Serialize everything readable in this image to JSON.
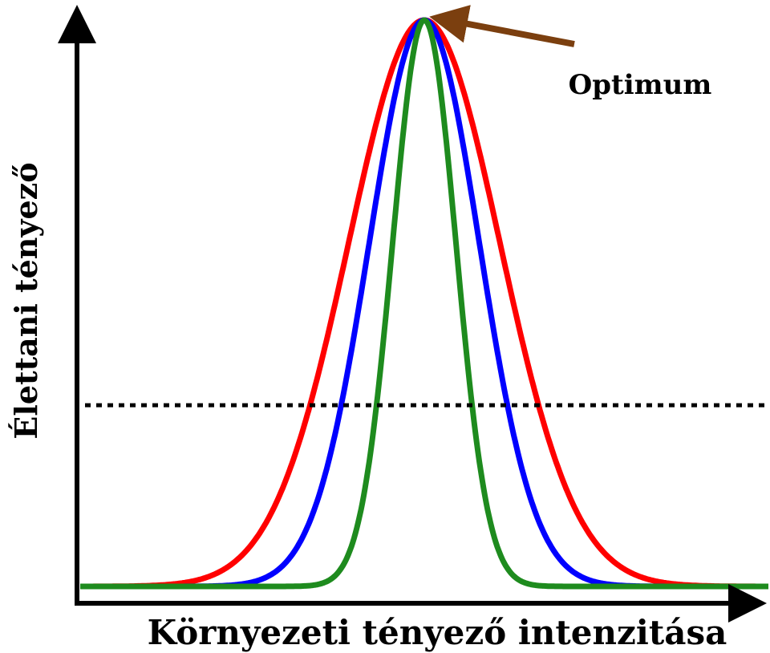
{
  "chart_data": {
    "type": "line",
    "title": "",
    "xlabel": "Környezeti tényező intenzitása",
    "ylabel": "Élettani tényező",
    "xlim": [
      0,
      100
    ],
    "ylim": [
      0,
      100
    ],
    "grid": false,
    "legend": "none",
    "threshold": {
      "y": 32,
      "style": "dotted",
      "color": "#000000"
    },
    "annotation": {
      "text": "Optimum",
      "target_x": 50,
      "target_y": 100,
      "arrow_color": "#7b3f0f"
    },
    "series": [
      {
        "color": "#ff0000",
        "peak_x": 50,
        "peak_y": 100,
        "sigma": 11.0
      },
      {
        "color": "#0000ff",
        "peak_x": 50,
        "peak_y": 100,
        "sigma": 8.0
      },
      {
        "color": "#1e8b1e",
        "peak_x": 50,
        "peak_y": 100,
        "sigma": 4.6
      }
    ]
  }
}
